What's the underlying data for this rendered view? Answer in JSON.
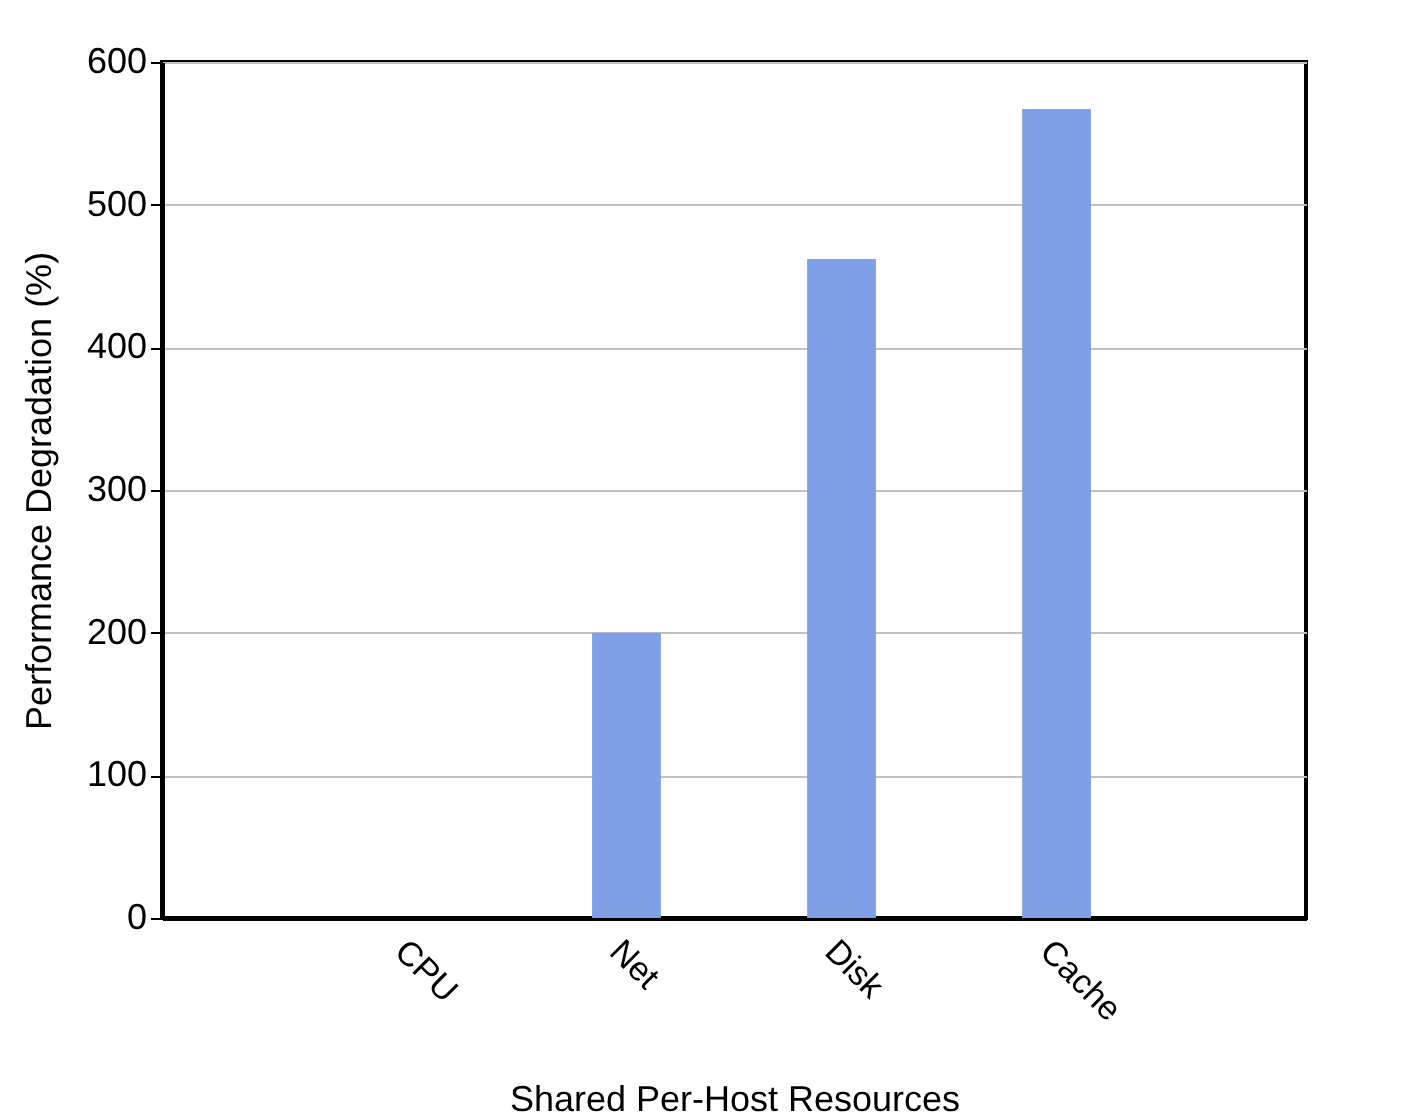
{
  "chart_data": {
    "type": "bar",
    "xlabel": "Shared Per-Host Resources",
    "ylabel": "Performance Degradation (%)",
    "categories": [
      "CPU",
      "Net",
      "Disk",
      "Cache"
    ],
    "values": [
      0,
      200,
      462,
      567
    ],
    "color": "#7f9fe6",
    "ylim": [
      0,
      600
    ],
    "yticks": [
      0,
      100,
      200,
      300,
      400,
      500,
      600
    ],
    "grid": "y"
  }
}
